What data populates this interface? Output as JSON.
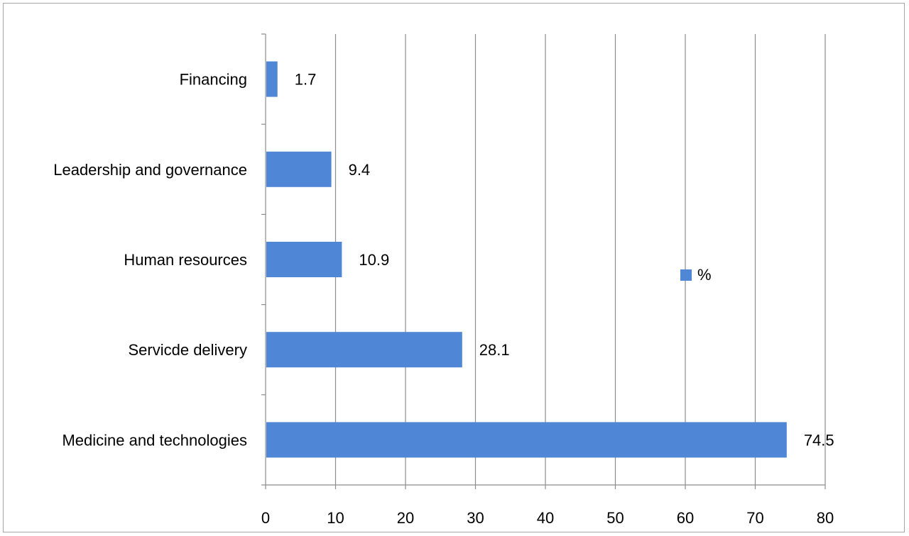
{
  "chart_data": {
    "type": "bar",
    "orientation": "horizontal",
    "categories": [
      "Financing",
      "Leadership and governance",
      "Human resources",
      "Servicde delivery",
      "Medicine and technologies"
    ],
    "series": [
      {
        "name": "%",
        "values": [
          1.7,
          9.4,
          10.9,
          28.1,
          74.5
        ],
        "color": "#4f86d6"
      }
    ],
    "xlim": [
      0,
      80
    ],
    "xticks": [
      "0",
      "10",
      "20",
      "30",
      "40",
      "50",
      "60",
      "70",
      "80"
    ],
    "title": "",
    "xlabel": "",
    "ylabel": "",
    "grid": "vertical",
    "legend": "right",
    "data_labels": [
      "1.7",
      "9.4",
      "10.9",
      "28.1",
      "74.5"
    ]
  }
}
